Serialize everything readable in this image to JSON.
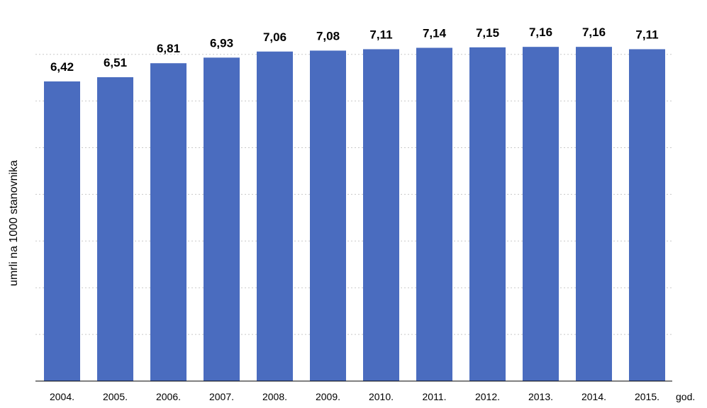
{
  "chart_data": {
    "type": "bar",
    "categories": [
      "2004.",
      "2005.",
      "2006.",
      "2007.",
      "2008.",
      "2009.",
      "2010.",
      "2011.",
      "2012.",
      "2013.",
      "2014.",
      "2015."
    ],
    "values": [
      6.42,
      6.51,
      6.81,
      6.93,
      7.06,
      7.08,
      7.11,
      7.14,
      7.15,
      7.16,
      7.16,
      7.11
    ],
    "value_labels": [
      "6,42",
      "6,51",
      "6,81",
      "6,93",
      "7,06",
      "7,08",
      "7,11",
      "7,14",
      "7,15",
      "7,16",
      "7,16",
      "7,11"
    ],
    "title": "",
    "xlabel": "god.",
    "ylabel": "umrli na 1000 stanovnika",
    "ylim": [
      0,
      7.8
    ],
    "grid": true,
    "bar_color": "#4a6cbf"
  }
}
